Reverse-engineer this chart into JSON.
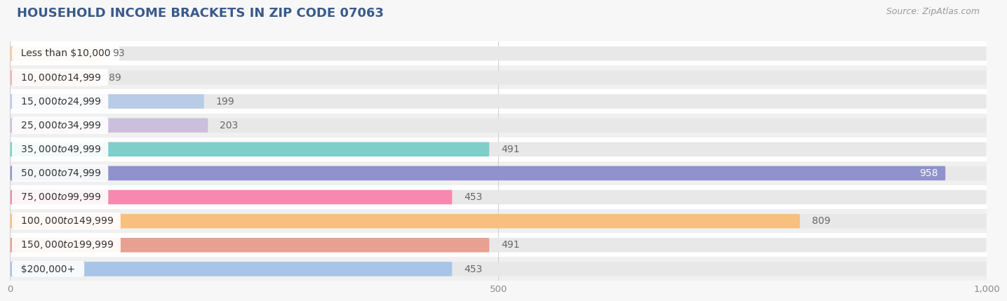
{
  "title": "HOUSEHOLD INCOME BRACKETS IN ZIP CODE 07063",
  "source": "Source: ZipAtlas.com",
  "categories": [
    "Less than $10,000",
    "$10,000 to $14,999",
    "$15,000 to $24,999",
    "$25,000 to $34,999",
    "$35,000 to $49,999",
    "$50,000 to $74,999",
    "$75,000 to $99,999",
    "$100,000 to $149,999",
    "$150,000 to $199,999",
    "$200,000+"
  ],
  "values": [
    93,
    89,
    199,
    203,
    491,
    958,
    453,
    809,
    491,
    453
  ],
  "bar_colors": [
    "#f8c99e",
    "#f5b3b5",
    "#b8cce8",
    "#ccbedd",
    "#7ececa",
    "#8f92cc",
    "#f788b0",
    "#f9bf7e",
    "#e8a090",
    "#a8c4e8"
  ],
  "xlim": [
    0,
    1000
  ],
  "xticks": [
    0,
    500,
    1000
  ],
  "xtick_labels": [
    "0",
    "500",
    "1,000"
  ],
  "bar_height": 0.6,
  "background_color": "#f7f7f7",
  "bg_bar_color": "#e8e8e8",
  "label_color_inside": "#ffffff",
  "label_color_outside": "#666666",
  "title_fontsize": 13,
  "source_fontsize": 9,
  "label_fontsize": 10,
  "tick_fontsize": 9.5,
  "category_fontsize": 10,
  "inside_threshold": 850,
  "cat_label_bg": "#ffffff",
  "row_colors": [
    "#ffffff",
    "#f0f0f0"
  ]
}
